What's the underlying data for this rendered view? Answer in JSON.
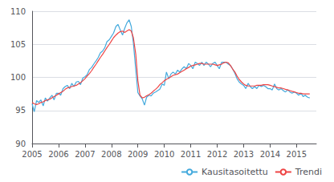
{
  "chart_data": {
    "type": "line",
    "x": [
      2005.0,
      2005.08,
      2005.17,
      2005.25,
      2005.33,
      2005.42,
      2005.5,
      2005.58,
      2005.67,
      2005.75,
      2005.83,
      2005.92,
      2006.0,
      2006.08,
      2006.17,
      2006.25,
      2006.33,
      2006.42,
      2006.5,
      2006.58,
      2006.67,
      2006.75,
      2006.83,
      2006.92,
      2007.0,
      2007.08,
      2007.17,
      2007.25,
      2007.33,
      2007.42,
      2007.5,
      2007.58,
      2007.67,
      2007.75,
      2007.83,
      2007.92,
      2008.0,
      2008.08,
      2008.17,
      2008.25,
      2008.33,
      2008.42,
      2008.5,
      2008.58,
      2008.67,
      2008.75,
      2008.83,
      2008.92,
      2009.0,
      2009.08,
      2009.17,
      2009.25,
      2009.33,
      2009.42,
      2009.5,
      2009.58,
      2009.67,
      2009.75,
      2009.83,
      2009.92,
      2010.0,
      2010.08,
      2010.17,
      2010.25,
      2010.33,
      2010.42,
      2010.5,
      2010.58,
      2010.67,
      2010.75,
      2010.83,
      2010.92,
      2011.0,
      2011.08,
      2011.17,
      2011.25,
      2011.33,
      2011.42,
      2011.5,
      2011.58,
      2011.67,
      2011.75,
      2011.83,
      2011.92,
      2012.0,
      2012.08,
      2012.17,
      2012.25,
      2012.33,
      2012.42,
      2012.5,
      2012.58,
      2012.67,
      2012.75,
      2012.83,
      2012.92,
      2013.0,
      2013.08,
      2013.17,
      2013.25,
      2013.33,
      2013.42,
      2013.5,
      2013.58,
      2013.67,
      2013.75,
      2013.83,
      2013.92,
      2014.0,
      2014.08,
      2014.17,
      2014.25,
      2014.33,
      2014.42,
      2014.5,
      2014.58,
      2014.67,
      2014.75,
      2014.83,
      2014.92,
      2015.0,
      2015.08,
      2015.17,
      2015.25,
      2015.33,
      2015.42,
      2015.5
    ],
    "series": [
      {
        "name": "Kausitasoitettu",
        "color": "#44AADD",
        "values": [
          96.0,
          94.8,
          96.5,
          96.2,
          96.6,
          95.7,
          96.9,
          96.4,
          96.9,
          97.3,
          96.6,
          97.6,
          97.6,
          97.3,
          98.3,
          98.6,
          98.8,
          98.3,
          99.1,
          98.6,
          99.3,
          99.4,
          98.9,
          99.9,
          100.1,
          100.4,
          101.2,
          101.5,
          102.0,
          102.5,
          103.0,
          103.7,
          104.0,
          104.5,
          105.4,
          105.7,
          106.2,
          106.7,
          107.7,
          108.0,
          107.2,
          106.4,
          107.4,
          108.2,
          108.7,
          107.7,
          105.2,
          101.2,
          97.7,
          97.2,
          96.7,
          95.8,
          97.0,
          97.3,
          97.2,
          97.6,
          97.8,
          98.0,
          98.2,
          99.0,
          98.8,
          100.8,
          99.8,
          100.5,
          100.8,
          100.5,
          101.1,
          100.8,
          101.3,
          101.6,
          101.3,
          102.1,
          101.8,
          101.3,
          102.3,
          102.1,
          101.8,
          102.3,
          101.8,
          102.3,
          102.0,
          101.6,
          102.1,
          102.3,
          101.8,
          101.3,
          102.3,
          102.3,
          102.3,
          102.0,
          101.8,
          101.3,
          100.6,
          99.8,
          99.3,
          99.0,
          98.8,
          98.3,
          99.1,
          98.6,
          98.3,
          98.6,
          98.3,
          98.8,
          98.6,
          98.8,
          98.6,
          98.3,
          98.3,
          98.1,
          99.0,
          98.3,
          98.1,
          98.3,
          98.0,
          97.8,
          98.1,
          97.8,
          97.6,
          97.8,
          97.6,
          97.3,
          97.6,
          97.1,
          97.3,
          97.0,
          96.9
        ]
      },
      {
        "name": "Trendi",
        "color": "#EE4444",
        "values": [
          96.2,
          96.0,
          95.9,
          96.0,
          96.2,
          96.3,
          96.5,
          96.6,
          96.7,
          96.9,
          97.1,
          97.3,
          97.5,
          97.7,
          97.9,
          98.2,
          98.4,
          98.5,
          98.6,
          98.7,
          98.8,
          99.0,
          99.2,
          99.5,
          99.8,
          100.2,
          100.6,
          101.0,
          101.5,
          102.0,
          102.5,
          103.0,
          103.5,
          104.0,
          104.5,
          105.0,
          105.5,
          106.0,
          106.4,
          106.7,
          106.9,
          107.0,
          106.8,
          107.0,
          107.2,
          107.0,
          106.0,
          103.5,
          99.5,
          97.3,
          96.9,
          97.0,
          97.2,
          97.4,
          97.6,
          97.9,
          98.2,
          98.5,
          98.9,
          99.2,
          99.5,
          99.7,
          99.9,
          100.1,
          100.3,
          100.4,
          100.5,
          100.7,
          100.9,
          101.1,
          101.3,
          101.5,
          101.7,
          101.8,
          101.9,
          102.0,
          102.1,
          102.1,
          102.0,
          102.0,
          102.0,
          102.0,
          102.0,
          101.9,
          101.8,
          101.9,
          102.0,
          102.2,
          102.3,
          102.2,
          101.8,
          101.3,
          100.8,
          100.2,
          99.7,
          99.3,
          99.0,
          98.8,
          98.7,
          98.7,
          98.7,
          98.7,
          98.8,
          98.8,
          98.8,
          98.9,
          98.9,
          98.9,
          98.8,
          98.7,
          98.6,
          98.5,
          98.4,
          98.4,
          98.3,
          98.2,
          98.1,
          98.0,
          97.9,
          97.8,
          97.7,
          97.6,
          97.6,
          97.5,
          97.5,
          97.5,
          97.5
        ]
      }
    ],
    "xlim": [
      2005.0,
      2015.75
    ],
    "xticks": [
      2005,
      2006,
      2007,
      2008,
      2009,
      2010,
      2011,
      2012,
      2013,
      2014,
      2015
    ],
    "ylim": [
      90,
      110
    ],
    "yticks": [
      90,
      95,
      100,
      105,
      110
    ],
    "grid": true,
    "legend": "lower right"
  }
}
